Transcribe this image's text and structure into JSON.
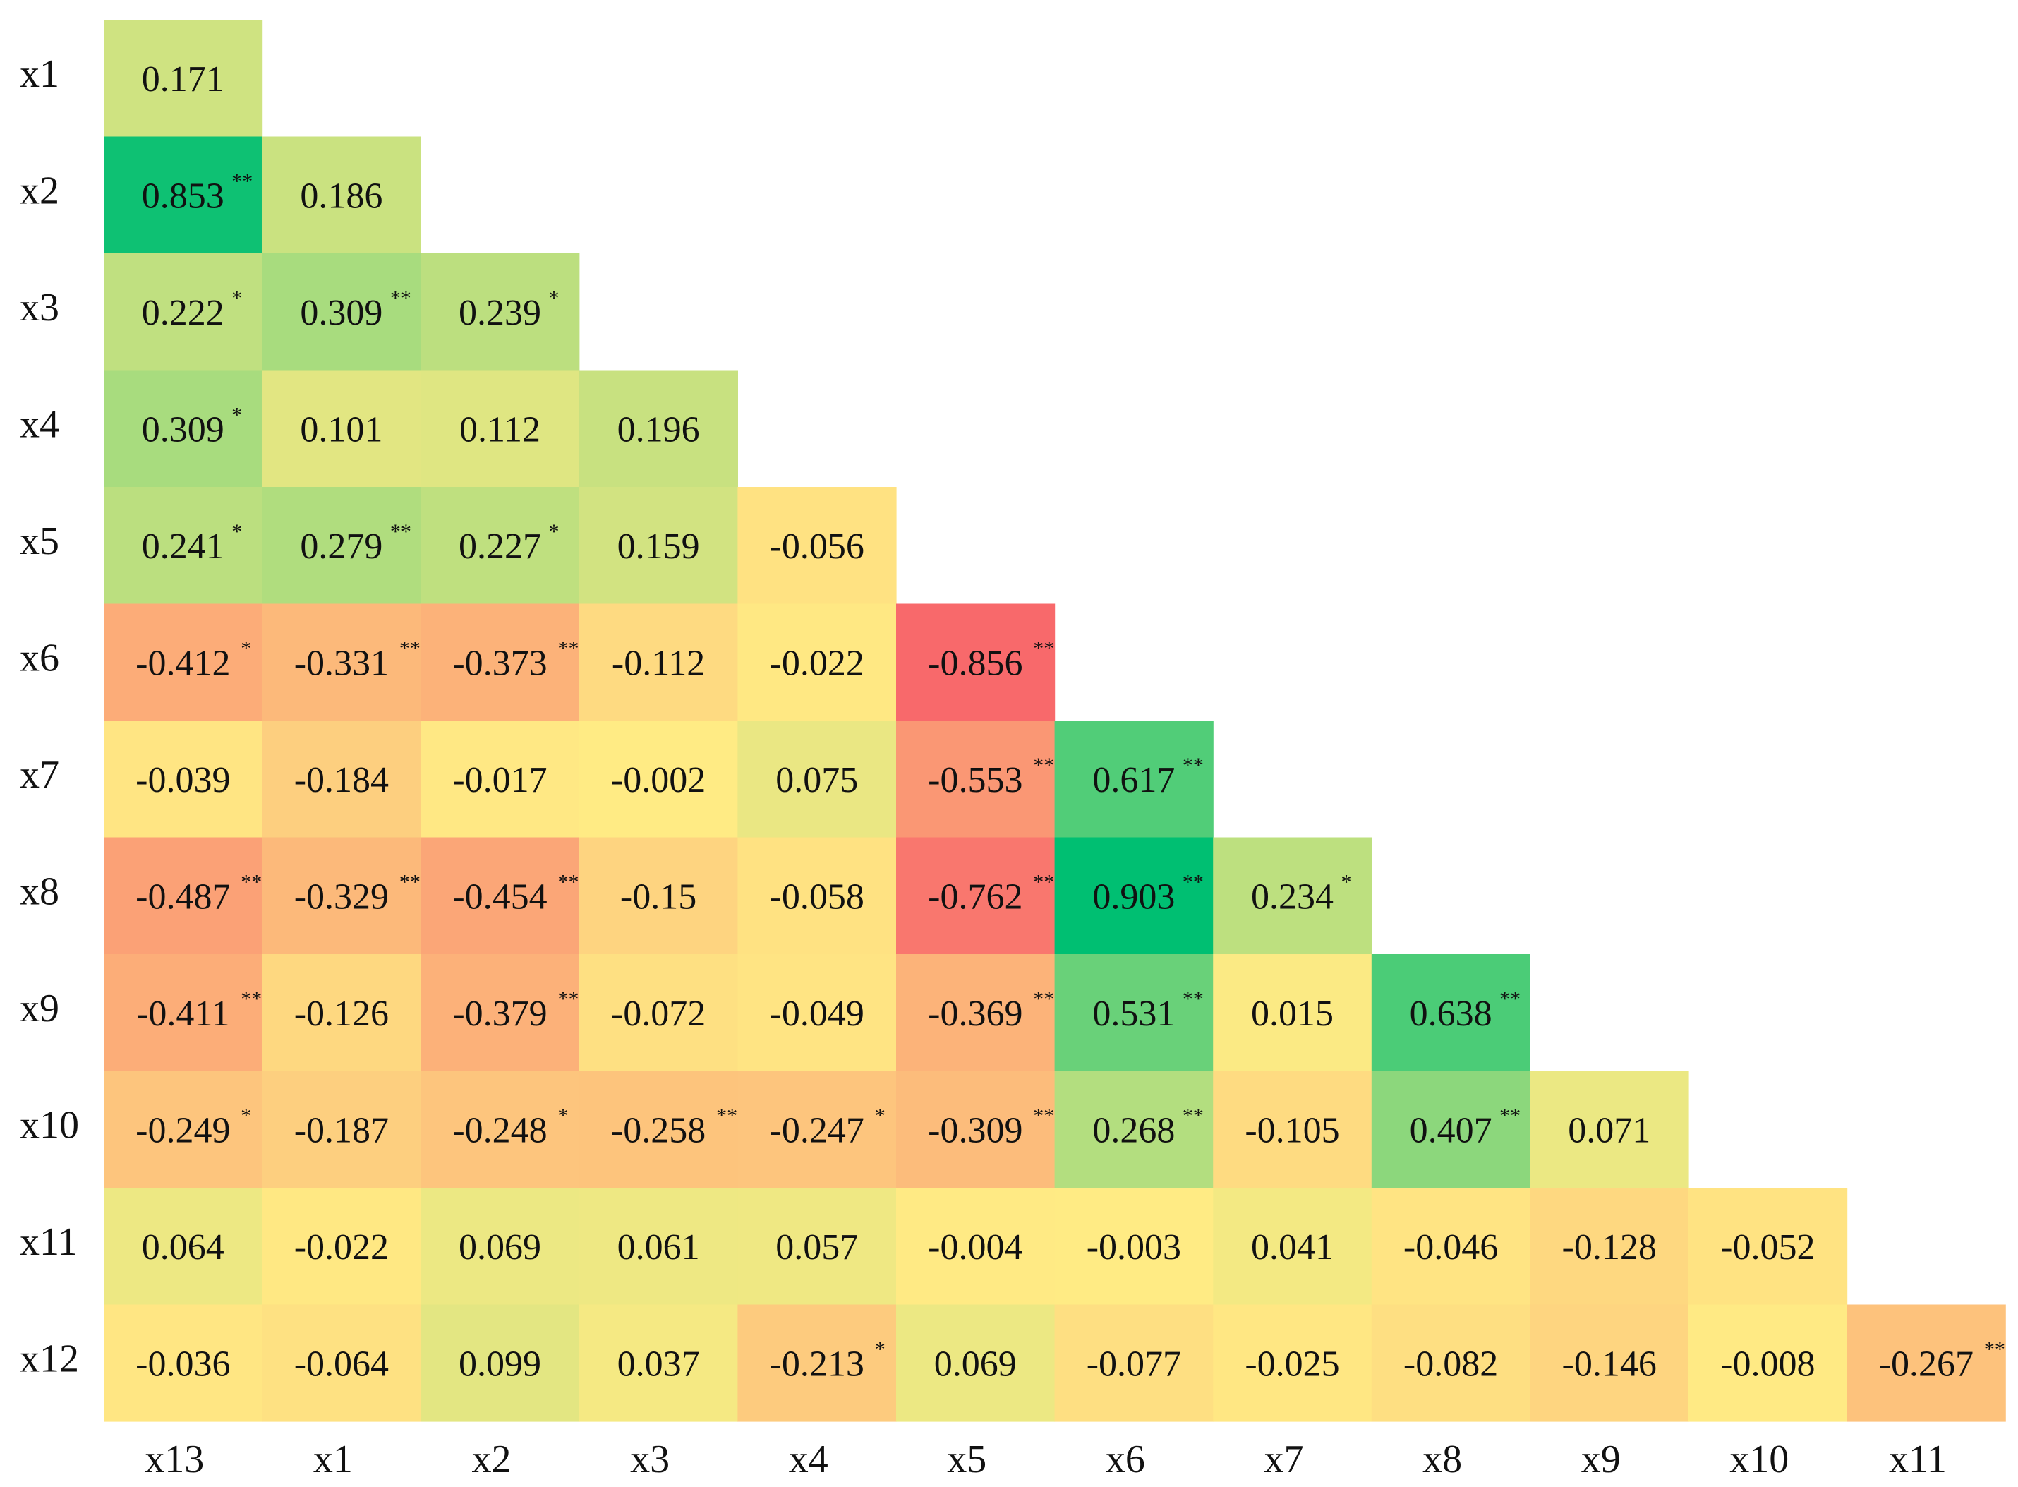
{
  "chart_data": {
    "type": "heatmap",
    "title": "",
    "row_labels": [
      "x1",
      "x2",
      "x3",
      "x4",
      "x5",
      "x6",
      "x7",
      "x8",
      "x9",
      "x10",
      "x11",
      "x12"
    ],
    "col_labels": [
      "x13",
      "x1",
      "x2",
      "x3",
      "x4",
      "x5",
      "x6",
      "x7",
      "x8",
      "x9",
      "x10",
      "x11"
    ],
    "values": [
      [
        0.171
      ],
      [
        0.853,
        0.186
      ],
      [
        0.222,
        0.309,
        0.239
      ],
      [
        0.309,
        0.101,
        0.112,
        0.196
      ],
      [
        0.241,
        0.279,
        0.227,
        0.159,
        -0.056
      ],
      [
        -0.412,
        -0.331,
        -0.373,
        -0.112,
        -0.022,
        -0.856
      ],
      [
        -0.039,
        -0.184,
        -0.017,
        -0.002,
        0.075,
        -0.553,
        0.617
      ],
      [
        -0.487,
        -0.329,
        -0.454,
        -0.15,
        -0.058,
        -0.762,
        0.903,
        0.234
      ],
      [
        -0.411,
        -0.126,
        -0.379,
        -0.072,
        -0.049,
        -0.369,
        0.531,
        0.015,
        0.638
      ],
      [
        -0.249,
        -0.187,
        -0.248,
        -0.258,
        -0.247,
        -0.309,
        0.268,
        -0.105,
        0.407,
        0.071
      ],
      [
        0.064,
        -0.022,
        0.069,
        0.061,
        0.057,
        -0.004,
        -0.003,
        0.041,
        -0.046,
        -0.128,
        -0.052
      ],
      [
        -0.036,
        -0.064,
        0.099,
        0.037,
        -0.213,
        0.069,
        -0.077,
        -0.025,
        -0.082,
        -0.146,
        -0.008,
        -0.267
      ]
    ],
    "labels": [
      [
        "0.171"
      ],
      [
        "0.853",
        "0.186"
      ],
      [
        "0.222",
        "0.309",
        "0.239"
      ],
      [
        "0.309",
        "0.101",
        "0.112",
        "0.196"
      ],
      [
        "0.241",
        "0.279",
        "0.227",
        "0.159",
        "-0.056"
      ],
      [
        "-0.412",
        "-0.331",
        "-0.373",
        "-0.112",
        "-0.022",
        "-0.856"
      ],
      [
        "-0.039",
        "-0.184",
        "-0.017",
        "-0.002",
        "0.075",
        "-0.553",
        "0.617"
      ],
      [
        "-0.487",
        "-0.329",
        "-0.454",
        "-0.15",
        "-0.058",
        "-0.762",
        "0.903",
        "0.234"
      ],
      [
        "-0.411",
        "-0.126",
        "-0.379",
        "-0.072",
        "-0.049",
        "-0.369",
        "0.531",
        "0.015",
        "0.638"
      ],
      [
        "-0.249",
        "-0.187",
        "-0.248",
        "-0.258",
        "-0.247",
        "-0.309",
        "0.268",
        "-0.105",
        "0.407",
        "0.071"
      ],
      [
        "0.064",
        "-0.022",
        "0.069",
        "0.061",
        "0.057",
        "-0.004",
        "-0.003",
        "0.041",
        "-0.046",
        "-0.128",
        "-0.052"
      ],
      [
        "-0.036",
        "-0.064",
        "0.099",
        "0.037",
        "-0.213",
        "0.069",
        "-0.077",
        "-0.025",
        "-0.082",
        "-0.146",
        "-0.008",
        "-0.267"
      ]
    ],
    "significance": [
      [
        ""
      ],
      [
        "**",
        ""
      ],
      [
        "*",
        "**",
        "*"
      ],
      [
        "*",
        "",
        "",
        ""
      ],
      [
        "*",
        "**",
        "*",
        "",
        ""
      ],
      [
        "*",
        "**",
        "**",
        "",
        "",
        "**"
      ],
      [
        "",
        "",
        "",
        "",
        "",
        "**",
        "**"
      ],
      [
        "**",
        "**",
        "**",
        "",
        "",
        "**",
        "**",
        "*"
      ],
      [
        "**",
        "",
        "**",
        "",
        "",
        "**",
        "**",
        "",
        "**"
      ],
      [
        "*",
        "",
        "*",
        "**",
        "*",
        "**",
        "**",
        "",
        "**",
        ""
      ],
      [
        "",
        "",
        "",
        "",
        "",
        "",
        "",
        "",
        "",
        "",
        ""
      ],
      [
        "",
        "",
        "",
        "",
        "*",
        "",
        "",
        "",
        "",
        "",
        "",
        "**"
      ]
    ],
    "colorscale": {
      "negative": "#f8696b",
      "zero": "#ffeb84",
      "positive": "#00bf72"
    },
    "grid": false,
    "legend": "none"
  }
}
